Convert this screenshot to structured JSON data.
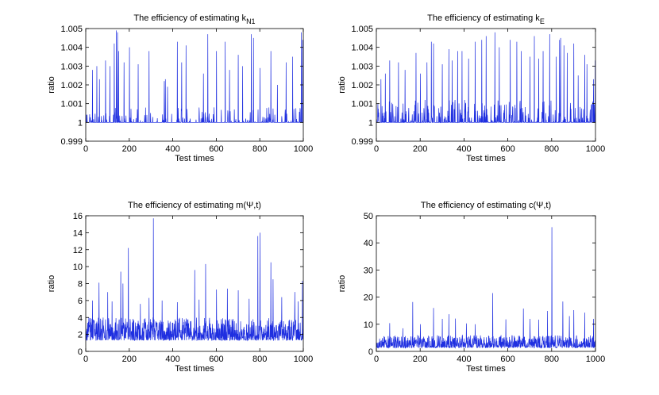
{
  "figure": {
    "background": "#ffffff",
    "series_color": "#1f2fe0"
  },
  "chart_data": [
    {
      "type": "line",
      "title": "The efficiency of estimating k",
      "title_subscript": "N1",
      "xlabel": "Test times",
      "ylabel": "ratio",
      "xlim": [
        0,
        1000
      ],
      "ylim": [
        0.999,
        1.005
      ],
      "xticks": [
        0,
        200,
        400,
        600,
        800,
        1000
      ],
      "xtick_labels": [
        "0",
        "200",
        "400",
        "600",
        "800",
        "1000"
      ],
      "yticks": [
        0.999,
        1,
        1.001,
        1.002,
        1.003,
        1.004,
        1.005
      ],
      "ytick_labels": [
        "0.999",
        "1",
        "1.001",
        "1.002",
        "1.003",
        "1.004",
        "1.005"
      ],
      "series": [
        {
          "name": "ratio",
          "n_points": 1000,
          "baseline": 1.0,
          "spike_fraction": 0.2,
          "noise_range": [
            0,
            0.0008
          ],
          "seed": 11,
          "peaks": [
            [
              30,
              1.0028
            ],
            [
              50,
              1.003
            ],
            [
              62,
              1.0023
            ],
            [
              90,
              1.0033
            ],
            [
              110,
              1.003
            ],
            [
              130,
              1.0042
            ],
            [
              140,
              1.0049
            ],
            [
              145,
              1.0048
            ],
            [
              150,
              1.0038
            ],
            [
              175,
              1.0032
            ],
            [
              200,
              1.004
            ],
            [
              240,
              1.0031
            ],
            [
              290,
              1.0038
            ],
            [
              360,
              1.0022
            ],
            [
              365,
              1.0023
            ],
            [
              375,
              1.0019
            ],
            [
              420,
              1.0043
            ],
            [
              440,
              1.0032
            ],
            [
              460,
              1.0041
            ],
            [
              540,
              1.0026
            ],
            [
              560,
              1.0047
            ],
            [
              600,
              1.0038
            ],
            [
              640,
              1.0043
            ],
            [
              660,
              1.0028
            ],
            [
              700,
              1.0036
            ],
            [
              720,
              1.003
            ],
            [
              760,
              1.0047
            ],
            [
              770,
              1.0045
            ],
            [
              800,
              1.0029
            ],
            [
              850,
              1.0038
            ],
            [
              880,
              1.002
            ],
            [
              920,
              1.0032
            ],
            [
              950,
              1.0035
            ],
            [
              990,
              1.0048
            ],
            [
              996,
              1.0044
            ]
          ]
        }
      ]
    },
    {
      "type": "line",
      "title": "The efficiency of estimating k",
      "title_subscript": "E",
      "xlabel": "Test times",
      "ylabel": "ratio",
      "xlim": [
        0,
        1000
      ],
      "ylim": [
        0.999,
        1.005
      ],
      "xticks": [
        0,
        200,
        400,
        600,
        800,
        1000
      ],
      "xtick_labels": [
        "0",
        "200",
        "400",
        "600",
        "800",
        "1000"
      ],
      "yticks": [
        0.999,
        1,
        1.001,
        1.002,
        1.003,
        1.004,
        1.005
      ],
      "ytick_labels": [
        "0.999",
        "1",
        "1.001",
        "1.002",
        "1.003",
        "1.004",
        "1.005"
      ],
      "series": [
        {
          "name": "ratio",
          "n_points": 1000,
          "baseline": 1.0,
          "spike_fraction": 0.28,
          "noise_range": [
            0,
            0.0012
          ],
          "seed": 23,
          "peaks": [
            [
              20,
              1.0023
            ],
            [
              40,
              1.0026
            ],
            [
              60,
              1.0033
            ],
            [
              100,
              1.0032
            ],
            [
              130,
              1.0028
            ],
            [
              180,
              1.0037
            ],
            [
              200,
              1.0026
            ],
            [
              230,
              1.0032
            ],
            [
              250,
              1.0043
            ],
            [
              260,
              1.0042
            ],
            [
              300,
              1.0031
            ],
            [
              330,
              1.0039
            ],
            [
              345,
              1.0033
            ],
            [
              370,
              1.0038
            ],
            [
              390,
              1.0038
            ],
            [
              420,
              1.0034
            ],
            [
              450,
              1.0043
            ],
            [
              480,
              1.0044
            ],
            [
              500,
              1.0046
            ],
            [
              540,
              1.0048
            ],
            [
              560,
              1.004
            ],
            [
              610,
              1.0044
            ],
            [
              640,
              1.0043
            ],
            [
              660,
              1.0038
            ],
            [
              700,
              1.0035
            ],
            [
              720,
              1.0046
            ],
            [
              740,
              1.0034
            ],
            [
              760,
              1.0038
            ],
            [
              790,
              1.0047
            ],
            [
              820,
              1.0035
            ],
            [
              835,
              1.0044
            ],
            [
              840,
              1.0045
            ],
            [
              855,
              1.0041
            ],
            [
              870,
              1.0037
            ],
            [
              900,
              1.0042
            ],
            [
              920,
              1.0025
            ],
            [
              950,
              1.0036
            ],
            [
              960,
              1.0031
            ],
            [
              990,
              1.0023
            ],
            [
              998,
              1.0033
            ]
          ]
        }
      ]
    },
    {
      "type": "line",
      "title": "The efficiency of estimating m(Ψ,t)",
      "title_subscript": "",
      "xlabel": "Test times",
      "ylabel": "ratio",
      "xlim": [
        0,
        1000
      ],
      "ylim": [
        0,
        16
      ],
      "xticks": [
        0,
        200,
        400,
        600,
        800,
        1000
      ],
      "xtick_labels": [
        "0",
        "200",
        "400",
        "600",
        "800",
        "1000"
      ],
      "yticks": [
        0,
        2,
        4,
        6,
        8,
        10,
        12,
        14,
        16
      ],
      "ytick_labels": [
        "0",
        "2",
        "4",
        "6",
        "8",
        "10",
        "12",
        "14",
        "16"
      ],
      "series": [
        {
          "name": "ratio",
          "n_points": 1000,
          "baseline": 1.0,
          "spike_fraction": 1.0,
          "noise_range": [
            0.3,
            3.0
          ],
          "seed": 37,
          "peaks": [
            [
              30,
              6.0
            ],
            [
              60,
              8.1
            ],
            [
              100,
              7.0
            ],
            [
              120,
              5.9
            ],
            [
              160,
              9.4
            ],
            [
              170,
              8.0
            ],
            [
              195,
              12.2
            ],
            [
              250,
              5.6
            ],
            [
              290,
              6.3
            ],
            [
              310,
              15.7
            ],
            [
              350,
              6.0
            ],
            [
              420,
              5.8
            ],
            [
              500,
              9.6
            ],
            [
              520,
              6.1
            ],
            [
              550,
              10.3
            ],
            [
              600,
              7.3
            ],
            [
              650,
              7.4
            ],
            [
              700,
              7.2
            ],
            [
              750,
              6.2
            ],
            [
              790,
              13.6
            ],
            [
              800,
              14.0
            ],
            [
              850,
              10.5
            ],
            [
              860,
              8.5
            ],
            [
              900,
              6.4
            ],
            [
              960,
              7.0
            ],
            [
              975,
              5.9
            ],
            [
              995,
              8.3
            ]
          ]
        }
      ]
    },
    {
      "type": "line",
      "title": "The efficiency of estimating c(Ψ,t)",
      "title_subscript": "",
      "xlabel": "Test times",
      "ylabel": "ratio",
      "xlim": [
        0,
        1000
      ],
      "ylim": [
        0,
        50
      ],
      "xticks": [
        0,
        200,
        400,
        600,
        800,
        1000
      ],
      "xtick_labels": [
        "0",
        "200",
        "400",
        "600",
        "800",
        "1000"
      ],
      "yticks": [
        0,
        10,
        20,
        30,
        40,
        50
      ],
      "ytick_labels": [
        "0",
        "10",
        "20",
        "30",
        "40",
        "50"
      ],
      "series": [
        {
          "name": "ratio",
          "n_points": 1000,
          "baseline": 1.0,
          "spike_fraction": 1.0,
          "noise_range": [
            0.3,
            5.0
          ],
          "seed": 53,
          "peaks": [
            [
              60,
              10.4
            ],
            [
              120,
              8.5
            ],
            [
              165,
              18.2
            ],
            [
              200,
              10.0
            ],
            [
              260,
              16.0
            ],
            [
              300,
              12.0
            ],
            [
              330,
              13.7
            ],
            [
              360,
              12.1
            ],
            [
              410,
              10.3
            ],
            [
              450,
              10.0
            ],
            [
              530,
              21.5
            ],
            [
              590,
              11.8
            ],
            [
              670,
              15.8
            ],
            [
              700,
              12.0
            ],
            [
              740,
              11.7
            ],
            [
              780,
              14.9
            ],
            [
              800,
              45.8
            ],
            [
              850,
              18.4
            ],
            [
              880,
              13.0
            ],
            [
              900,
              15.2
            ],
            [
              950,
              14.3
            ],
            [
              990,
              12.0
            ]
          ]
        }
      ]
    }
  ]
}
